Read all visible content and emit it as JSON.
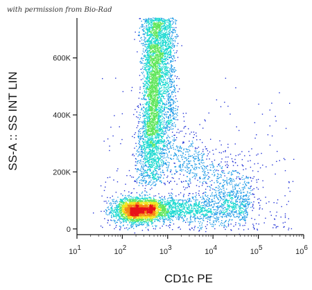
{
  "permission_note": "with permission from Bio-Rad",
  "chart_data": {
    "type": "scatter",
    "subtype": "flow-cytometry-density-dot-plot",
    "title": "",
    "xlabel": "CD1c PE",
    "ylabel": "SS-A :: SS INT LIN",
    "x_scale": "log",
    "y_scale": "linear",
    "xlim": [
      10,
      1000000
    ],
    "ylim": [
      -20000,
      740000
    ],
    "x_ticks": [
      {
        "value": 10,
        "base": "10",
        "exp": "1"
      },
      {
        "value": 100,
        "base": "10",
        "exp": "2"
      },
      {
        "value": 1000,
        "base": "10",
        "exp": "3"
      },
      {
        "value": 10000,
        "base": "10",
        "exp": "4"
      },
      {
        "value": 100000,
        "base": "10",
        "exp": "5"
      },
      {
        "value": 1000000,
        "base": "10",
        "exp": "6"
      }
    ],
    "y_ticks": [
      {
        "value": 0,
        "label": "0"
      },
      {
        "value": 200000,
        "label": "200K"
      },
      {
        "value": 400000,
        "label": "400K"
      },
      {
        "value": 600000,
        "label": "600K"
      }
    ],
    "grid": false,
    "legend": "none",
    "color_scale": [
      "#1e2fd6",
      "#1e9be6",
      "#19d9d0",
      "#5fe65a",
      "#f2e61f",
      "#f58a14",
      "#e8121a"
    ],
    "populations": [
      {
        "name": "low-SSC dense cluster",
        "x_center": 220,
        "y_center": 65000,
        "x_spread_decades": 0.25,
        "y_spread": 22000,
        "peak_density": 1.0
      },
      {
        "name": "high-SSC vertical band",
        "x_center": 450,
        "y_range": [
          150000,
          740000
        ],
        "y_peak": 480000,
        "x_spread_decades": 0.12,
        "peak_density": 0.7
      },
      {
        "name": "low-SSC tail to high CD1c",
        "x_range": [
          400,
          60000
        ],
        "y_center": 70000,
        "y_spread": 30000,
        "peak_density": 0.3
      },
      {
        "name": "diagonal scatter",
        "x_range": [
          500,
          80000
        ],
        "y_range": [
          80000,
          320000
        ],
        "peak_density": 0.12
      },
      {
        "name": "upper vertical streak",
        "x_center": 1100,
        "y_range": [
          350000,
          740000
        ],
        "peak_density": 0.15
      }
    ]
  }
}
